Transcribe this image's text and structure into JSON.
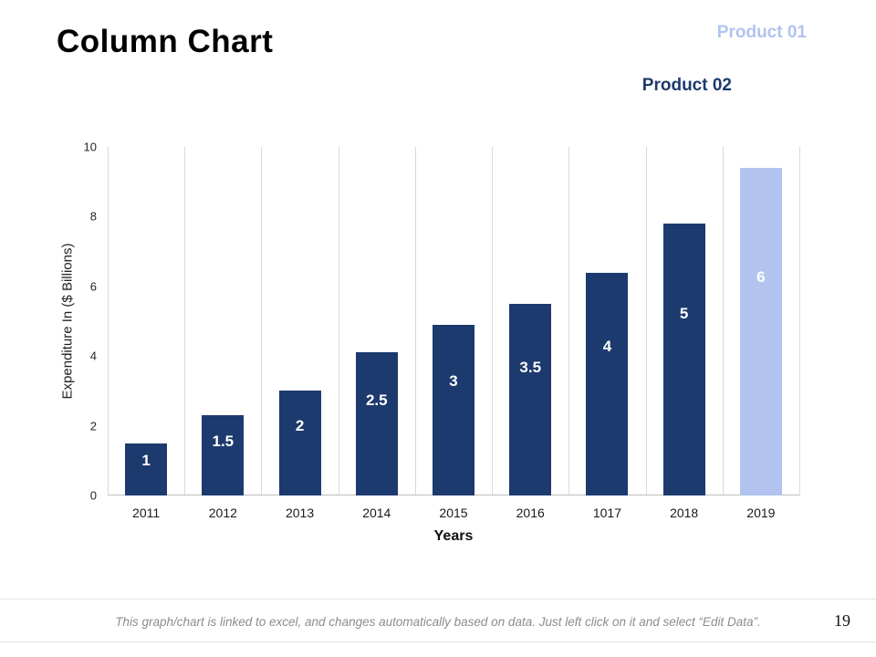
{
  "slide": {
    "title": "Column Chart",
    "page_number": "19",
    "footer_note": "This graph/chart is linked to excel, and changes automatically based on data. Just left click on it and select “Edit Data”."
  },
  "chart_data": {
    "type": "bar",
    "title": "",
    "xlabel": "Years",
    "ylabel": "Expenditure In ($ Billions)",
    "ylim": [
      0,
      10
    ],
    "yticks": [
      0,
      2,
      4,
      6,
      8,
      10
    ],
    "grid": "vertical category separators only",
    "legend_position": "text annotations beside tallest bars",
    "categories": [
      "2011",
      "2012",
      "2013",
      "2014",
      "2015",
      "2016",
      "1017",
      "2018",
      "2019"
    ],
    "series": [
      {
        "name": "Product 01",
        "color": "#b1c3ee",
        "categories": [
          "2019"
        ],
        "values": [
          6
        ]
      },
      {
        "name": "Product 02",
        "color": "#1d3a6e",
        "categories": [
          "2011",
          "2012",
          "2013",
          "2014",
          "2015",
          "2016",
          "1017",
          "2018"
        ],
        "values": [
          1,
          1.5,
          2,
          2.5,
          3,
          3.5,
          4,
          5
        ]
      }
    ],
    "bars": [
      {
        "category": "2011",
        "label": "1",
        "value": 1,
        "series": "Product 02",
        "visual_height_units": 1.5
      },
      {
        "category": "2012",
        "label": "1.5",
        "value": 1.5,
        "series": "Product 02",
        "visual_height_units": 2.3
      },
      {
        "category": "2013",
        "label": "2",
        "value": 2,
        "series": "Product 02",
        "visual_height_units": 3.0
      },
      {
        "category": "2014",
        "label": "2.5",
        "value": 2.5,
        "series": "Product 02",
        "visual_height_units": 4.1
      },
      {
        "category": "2015",
        "label": "3",
        "value": 3,
        "series": "Product 02",
        "visual_height_units": 4.9
      },
      {
        "category": "2016",
        "label": "3.5",
        "value": 3.5,
        "series": "Product 02",
        "visual_height_units": 5.5
      },
      {
        "category": "1017",
        "label": "4",
        "value": 4,
        "series": "Product 02",
        "visual_height_units": 6.4
      },
      {
        "category": "2018",
        "label": "5",
        "value": 5,
        "series": "Product 02",
        "visual_height_units": 7.8
      },
      {
        "category": "2019",
        "label": "6",
        "value": 6,
        "series": "Product 01",
        "visual_height_units": 9.4
      }
    ],
    "colors": {
      "grid_line": "#d9d9d9",
      "axis_line": "#bfbfbf",
      "bar_value_label_text": "#ffffff"
    }
  }
}
